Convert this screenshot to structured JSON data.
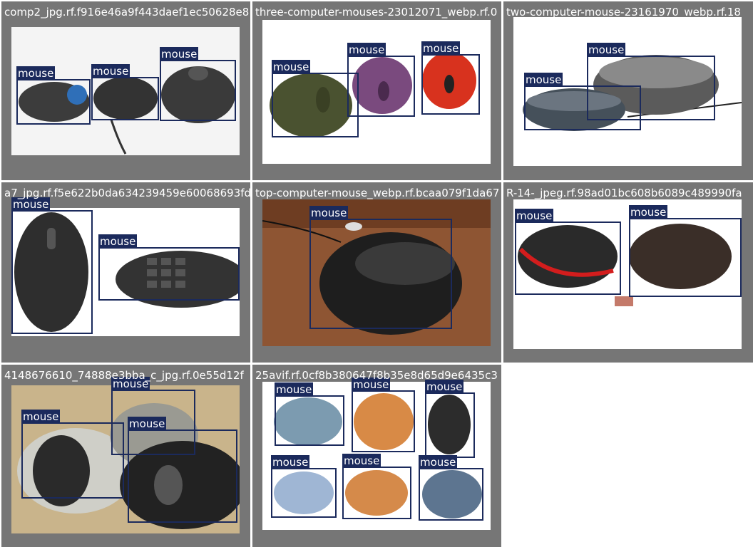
{
  "colors": {
    "tile_bg": "#767676",
    "box": "#1b2a5c",
    "label_text": "#ffffff"
  },
  "tiles": [
    {
      "filename": "comp2_jpg.rf.f916e46a9f443daef1ec50628e8",
      "labels": [
        "mouse",
        "mouse",
        "mouse"
      ]
    },
    {
      "filename": "three-computer-mouses-23012071_webp.rf.0",
      "labels": [
        "mouse",
        "mouse",
        "mouse"
      ]
    },
    {
      "filename": "two-computer-mouse-23161970_webp.rf.18",
      "labels": [
        "mouse",
        "mouse"
      ]
    },
    {
      "filename": "a7_jpg.rf.f5e622b0da634239459e60068693fd",
      "labels": [
        "mouse",
        "mouse"
      ]
    },
    {
      "filename": "top-computer-mouse_webp.rf.bcaa079f1da67",
      "labels": [
        "mouse"
      ]
    },
    {
      "filename": "R-14-_jpeg.rf.98ad01bc608b6089c489990fa",
      "labels": [
        "mouse",
        "mouse"
      ]
    },
    {
      "filename": "4148676610_74888e3bba_c_jpg.rf.0e55d12f",
      "labels": [
        "mouse",
        "mouse",
        "mouse"
      ]
    },
    {
      "filename": "25avif.rf.0cf8b380647f8b35e8d65d9e6435c3",
      "labels": [
        "mouse",
        "mouse",
        "mouse",
        "mouse",
        "mouse",
        "mouse"
      ]
    }
  ]
}
